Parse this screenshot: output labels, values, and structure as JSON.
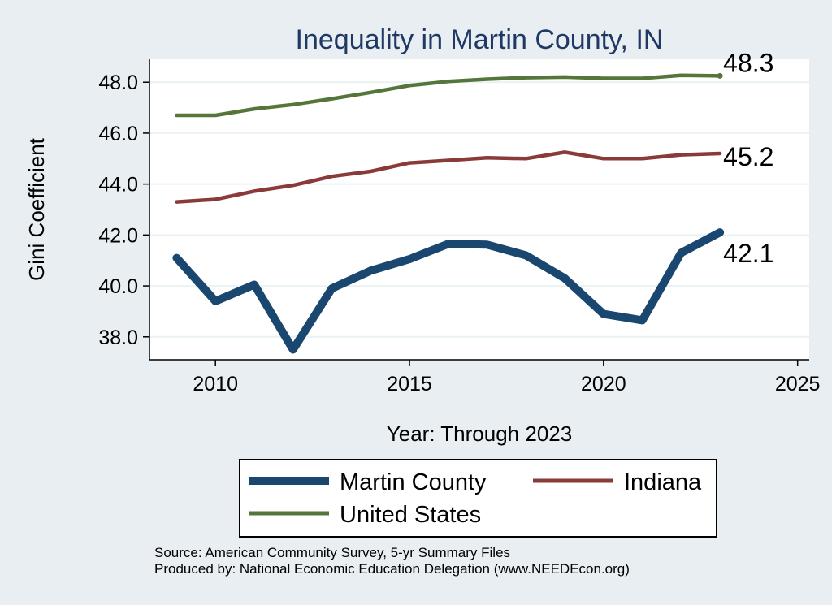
{
  "chart_data": {
    "type": "line",
    "title": "Inequality in Martin County, IN",
    "xlabel": "Year: Through 2023",
    "ylabel": "Gini Coefficient",
    "xlim": [
      2008.3,
      2025.3
    ],
    "ylim": [
      37.1,
      48.9
    ],
    "x_ticks": [
      2010,
      2015,
      2020,
      2025
    ],
    "y_ticks": [
      38,
      40,
      42,
      44,
      46,
      48
    ],
    "y_tick_labels": [
      "38.0",
      "40.0",
      "42.0",
      "44.0",
      "46.0",
      "48.0"
    ],
    "x": [
      2009,
      2010,
      2011,
      2012,
      2013,
      2014,
      2015,
      2016,
      2017,
      2018,
      2019,
      2020,
      2021,
      2022,
      2023
    ],
    "series": [
      {
        "name": "United States",
        "color": "#55763a",
        "values": [
          46.7,
          46.7,
          46.95,
          47.12,
          47.35,
          47.6,
          47.87,
          48.03,
          48.12,
          48.18,
          48.2,
          48.15,
          48.15,
          48.27,
          48.25
        ],
        "end_label": "48.3"
      },
      {
        "name": "Indiana",
        "color": "#8b3a3a",
        "values": [
          43.3,
          43.4,
          43.72,
          43.95,
          44.3,
          44.5,
          44.83,
          44.93,
          45.03,
          45.0,
          45.25,
          45.0,
          45.0,
          45.15,
          45.2
        ],
        "end_label": "45.2"
      },
      {
        "name": "Martin County",
        "color": "#1a476f",
        "values": [
          41.1,
          39.4,
          40.05,
          37.5,
          39.9,
          40.6,
          41.05,
          41.65,
          41.62,
          41.2,
          40.3,
          38.9,
          38.65,
          41.3,
          42.1
        ],
        "end_label": "42.1"
      }
    ],
    "legend": {
      "placement": "bottom",
      "entries": [
        "Martin County",
        "Indiana",
        "United States"
      ]
    }
  },
  "source_note": {
    "line1": "Source: American Community Survey, 5-yr Summary Files",
    "line2": "Produced by: National Economic Education Delegation (www.NEEDEcon.org)"
  }
}
